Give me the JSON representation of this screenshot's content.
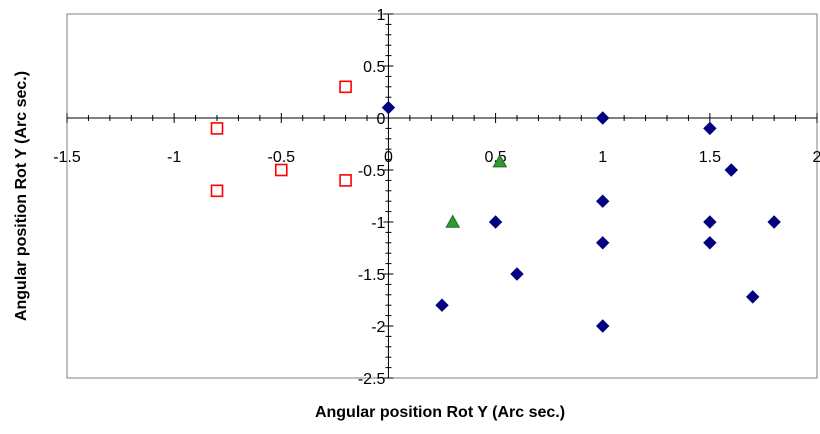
{
  "chart_data": {
    "type": "scatter",
    "title": "",
    "xlabel": "Angular position Rot Y  (Arc sec.)",
    "ylabel": "Angular position Rot Y  (Arc sec.)",
    "xlim": [
      -1.5,
      2
    ],
    "ylim": [
      -2.5,
      1
    ],
    "xticks": [
      "-1.5",
      "-1",
      "-0.5",
      "0",
      "0.5",
      "1",
      "1.5",
      "2"
    ],
    "yticks": [
      "1",
      "0.5",
      "0",
      "-0.5",
      "-1",
      "-1.5",
      "-2",
      "-2.5"
    ],
    "grid": false,
    "legend": "none",
    "series": [
      {
        "marker": "diamond",
        "color": "#000080",
        "points": [
          [
            0,
            0.1
          ],
          [
            1,
            0
          ],
          [
            1.5,
            -0.1
          ],
          [
            1.6,
            -0.5
          ],
          [
            1,
            -0.8
          ],
          [
            0.5,
            -1
          ],
          [
            1.5,
            -1
          ],
          [
            1.8,
            -1
          ],
          [
            1,
            -1.2
          ],
          [
            1.5,
            -1.2
          ],
          [
            0.6,
            -1.5
          ],
          [
            1.7,
            -1.72
          ],
          [
            0.25,
            -1.8
          ],
          [
            1,
            -2
          ]
        ]
      },
      {
        "marker": "square-open",
        "color": "#ff0000",
        "points": [
          [
            -0.2,
            0.3
          ],
          [
            -0.8,
            -0.1
          ],
          [
            -0.5,
            -0.5
          ],
          [
            -0.2,
            -0.6
          ],
          [
            -0.8,
            -0.7
          ]
        ]
      },
      {
        "marker": "triangle",
        "color": "#339933",
        "points": [
          [
            0.52,
            -0.42
          ],
          [
            0.3,
            -1
          ]
        ]
      }
    ]
  }
}
